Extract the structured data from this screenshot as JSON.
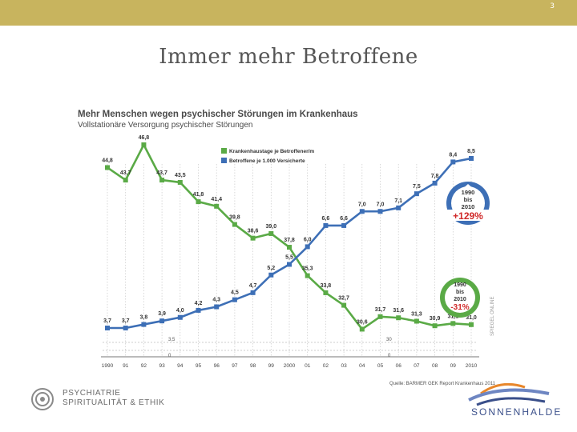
{
  "slide": {
    "number": "3",
    "title": "Immer mehr Betroffene"
  },
  "logos": {
    "left_line1": "PSYCHIATRIE",
    "left_line2": "SPIRITUALITÄT & ETHIK",
    "right": "SONNENHALDE"
  },
  "colors": {
    "bar": "#c8b45e",
    "green": "#5aaa46",
    "blue": "#3d6fb6"
  },
  "chart_data": {
    "type": "line",
    "title": "Mehr Menschen wegen psychischer Störungen im Krankenhaus",
    "subtitle": "Vollstationäre Versorgung psychischer Störungen",
    "categories": [
      "1990",
      "91",
      "92",
      "93",
      "94",
      "95",
      "96",
      "97",
      "98",
      "99",
      "2000",
      "01",
      "02",
      "03",
      "04",
      "05",
      "06",
      "07",
      "08",
      "09",
      "2010"
    ],
    "series": [
      {
        "name": "Krankenhaustage je Betroffener/m",
        "color": "#5aaa46",
        "values": [
          44.8,
          43.7,
          46.8,
          43.7,
          43.5,
          41.8,
          41.4,
          39.8,
          38.6,
          39.0,
          37.8,
          35.3,
          33.8,
          32.7,
          30.6,
          31.7,
          31.6,
          31.3,
          30.9,
          31.1,
          31.0
        ],
        "labels": [
          "44,8",
          "43,7",
          "46,8",
          "43,7",
          "43,5",
          "41,8",
          "41,4",
          "39,8",
          "38,6",
          "39,0",
          "37,8",
          "35,3",
          "33,8",
          "32,7",
          "30,6",
          "31,7",
          "31,6",
          "31,3",
          "30,9",
          "31,1",
          "31,0"
        ]
      },
      {
        "name": "Betroffene je 1.000 Versicherte",
        "color": "#3d6fb6",
        "values": [
          3.7,
          3.7,
          3.8,
          3.9,
          4.0,
          4.2,
          4.3,
          4.5,
          4.7,
          5.2,
          5.5,
          6.0,
          6.6,
          6.6,
          7.0,
          7.0,
          7.1,
          7.5,
          7.8,
          8.4,
          8.5
        ],
        "labels": [
          "3,7",
          "3,7",
          "3,8",
          "3,9",
          "4,0",
          "4,2",
          "4,3",
          "4,5",
          "4,7",
          "5,2",
          "5,5",
          "6,0",
          "6,6",
          "6,6",
          "7,0",
          "7,0",
          "7,1",
          "7,5",
          "7,8",
          "8,4",
          "8,5"
        ]
      }
    ],
    "green_axis": {
      "range": [
        30,
        47
      ],
      "base_label": "30",
      "zero_label": "0"
    },
    "blue_axis": {
      "range": [
        3.5,
        8.5
      ],
      "base_label": "3,5",
      "zero_label": "0"
    },
    "badge_up": {
      "line1": "1990",
      "line2": "bis",
      "line3": "2010",
      "change": "+129%"
    },
    "badge_down": {
      "line1": "1990",
      "line2": "bis",
      "line3": "2010",
      "change": "-31%"
    },
    "source": "Quelle: BARMER GEK Report Krankenhaus 2011",
    "side_credit": "SPIEGEL ONLINE"
  }
}
